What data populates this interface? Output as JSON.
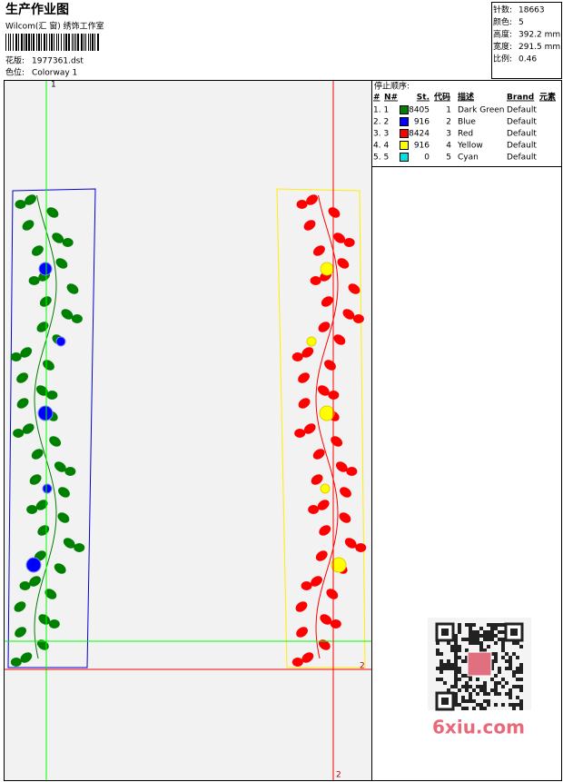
{
  "header": {
    "title": "生产作业图",
    "studio": "Wilcom(汇 窗) 绣饰工作室",
    "design_label": "花版:",
    "design": "1977361.dst",
    "colorway_label": "色位:",
    "colorway": "Colorway 1"
  },
  "stats": [
    {
      "label": "针数:",
      "value": "18663"
    },
    {
      "label": "颜色:",
      "value": "5"
    },
    {
      "label": "高度:",
      "value": "392.2 mm"
    },
    {
      "label": "宽度:",
      "value": "291.5 mm"
    },
    {
      "label": "比例:",
      "value": "0.46"
    }
  ],
  "canvas": {
    "marker_top": "1",
    "marker_right": "2",
    "marker_bottom": "2"
  },
  "stop_sequence": {
    "title": "停止顺序:",
    "columns": [
      "#",
      "N#",
      "St.",
      "代码",
      "描述",
      "Brand",
      "元素"
    ],
    "rows": [
      {
        "index": "1. 1",
        "color": "#008000",
        "stitches": "8405",
        "code": "1",
        "description": "Dark Green",
        "brand": "Default"
      },
      {
        "index": "2. 2",
        "color": "#0000ff",
        "stitches": "916",
        "code": "2",
        "description": "Blue",
        "brand": "Default"
      },
      {
        "index": "3. 3",
        "color": "#ff0000",
        "stitches": "8424",
        "code": "3",
        "description": "Red",
        "brand": "Default"
      },
      {
        "index": "4. 4",
        "color": "#ffff00",
        "stitches": "916",
        "code": "4",
        "description": "Yellow",
        "brand": "Default"
      },
      {
        "index": "5. 5",
        "color": "#00e0e0",
        "stitches": "0",
        "code": "5",
        "description": "Cyan",
        "brand": "Default"
      }
    ]
  },
  "watermark": "6xiu.com"
}
